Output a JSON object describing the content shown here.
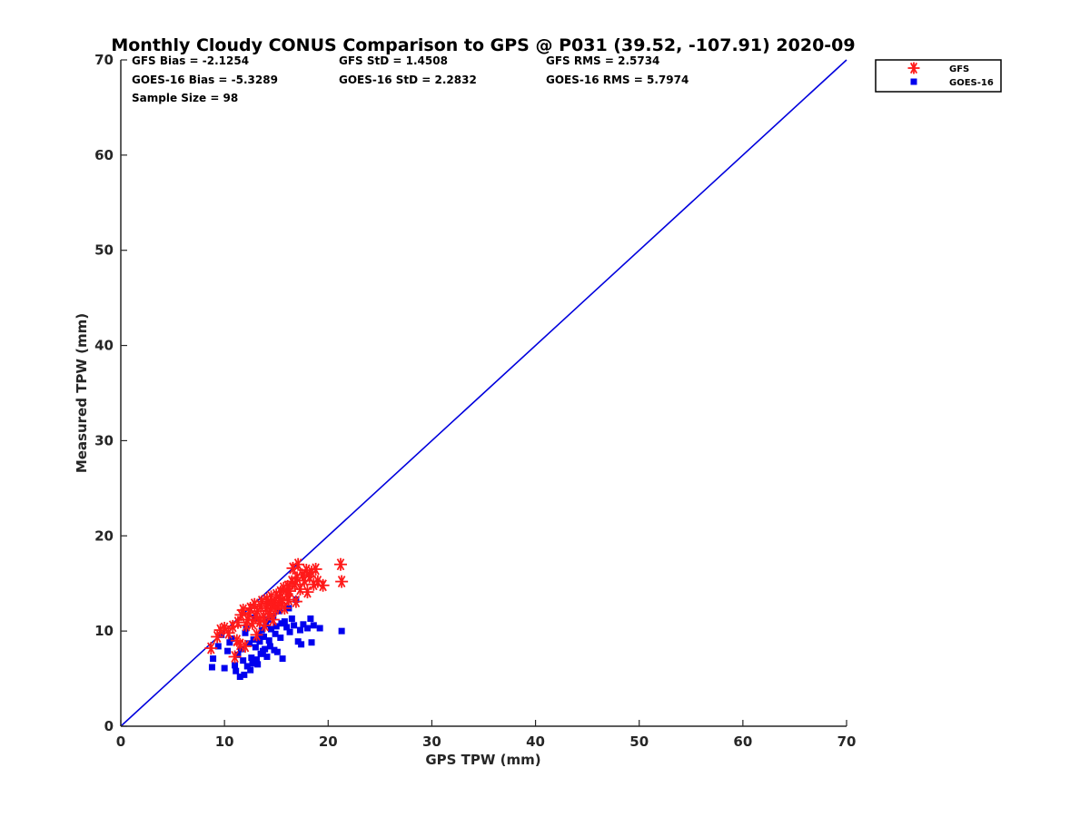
{
  "chart_data": {
    "type": "scatter",
    "title": "Monthly Cloudy CONUS Comparison to GPS @ P031 (39.52, -107.91) 2020-09",
    "xlabel": "GPS TPW (mm)",
    "ylabel": "Measured TPW (mm)",
    "xlim": [
      0,
      70
    ],
    "ylim": [
      0,
      70
    ],
    "xticks": [
      "0",
      "10",
      "20",
      "30",
      "40",
      "50",
      "60",
      "70"
    ],
    "yticks": [
      "0",
      "10",
      "20",
      "30",
      "40",
      "50",
      "60",
      "70"
    ],
    "grid": false,
    "legend_position": "top-right-outside",
    "stats": {
      "gfs_bias": "GFS Bias = -2.1254",
      "goes_bias": "GOES-16 Bias = -5.3289",
      "sample_size": "Sample Size = 98",
      "gfs_std": "GFS StD = 1.4508",
      "goes_std": "GOES-16 StD = 2.2832",
      "gfs_rms": "GFS RMS = 2.5734",
      "goes_rms": "GOES-16 RMS = 5.7974"
    },
    "reference_line": {
      "from": [
        0,
        0
      ],
      "to": [
        70,
        70
      ],
      "color": "#0000dd"
    },
    "series": [
      {
        "name": "GFS",
        "marker": "asterisk",
        "color": "#ff1a1a",
        "points": [
          [
            8.7,
            8.2
          ],
          [
            9.3,
            9.4
          ],
          [
            9.6,
            10.1
          ],
          [
            10.0,
            10.3
          ],
          [
            10.4,
            9.8
          ],
          [
            10.8,
            10.5
          ],
          [
            11.0,
            7.3
          ],
          [
            11.2,
            9.0
          ],
          [
            11.3,
            10.9
          ],
          [
            11.5,
            8.6
          ],
          [
            11.6,
            11.7
          ],
          [
            11.8,
            12.2
          ],
          [
            12.0,
            8.4
          ],
          [
            12.1,
            10.6
          ],
          [
            12.2,
            11.2
          ],
          [
            12.4,
            11.9
          ],
          [
            12.5,
            12.4
          ],
          [
            12.7,
            10.8
          ],
          [
            12.9,
            12.8
          ],
          [
            13.0,
            11.5
          ],
          [
            13.1,
            9.6
          ],
          [
            13.2,
            12.1
          ],
          [
            13.4,
            11.0
          ],
          [
            13.5,
            12.6
          ],
          [
            13.6,
            13.1
          ],
          [
            13.8,
            11.4
          ],
          [
            13.9,
            10.6
          ],
          [
            14.0,
            12.4
          ],
          [
            14.1,
            13.3
          ],
          [
            14.2,
            12.9
          ],
          [
            14.3,
            11.8
          ],
          [
            14.4,
            12.1
          ],
          [
            14.5,
            13.6
          ],
          [
            14.6,
            12.7
          ],
          [
            14.7,
            11.2
          ],
          [
            14.8,
            13.0
          ],
          [
            14.9,
            12.3
          ],
          [
            15.0,
            13.8
          ],
          [
            15.2,
            12.6
          ],
          [
            15.3,
            13.4
          ],
          [
            15.4,
            14.1
          ],
          [
            15.5,
            12.9
          ],
          [
            15.6,
            13.2
          ],
          [
            15.7,
            14.5
          ],
          [
            15.8,
            12.4
          ],
          [
            16.0,
            13.9
          ],
          [
            16.1,
            14.7
          ],
          [
            16.2,
            13.3
          ],
          [
            16.3,
            14.2
          ],
          [
            16.5,
            15.2
          ],
          [
            16.6,
            16.6
          ],
          [
            16.8,
            14.9
          ],
          [
            16.9,
            13.1
          ],
          [
            17.0,
            15.6
          ],
          [
            17.1,
            17.0
          ],
          [
            17.3,
            14.4
          ],
          [
            17.5,
            15.9
          ],
          [
            17.7,
            15.3
          ],
          [
            17.9,
            16.4
          ],
          [
            18.0,
            14.1
          ],
          [
            18.2,
            15.7
          ],
          [
            18.4,
            16.2
          ],
          [
            18.6,
            14.9
          ],
          [
            18.8,
            16.5
          ],
          [
            19.0,
            15.2
          ],
          [
            19.5,
            14.8
          ],
          [
            21.2,
            17.0
          ],
          [
            21.3,
            15.2
          ]
        ]
      },
      {
        "name": "GOES-16",
        "marker": "square",
        "color": "#0000ee",
        "points": [
          [
            8.8,
            6.2
          ],
          [
            8.9,
            7.1
          ],
          [
            9.4,
            8.4
          ],
          [
            9.7,
            9.6
          ],
          [
            10.0,
            6.1
          ],
          [
            10.3,
            7.9
          ],
          [
            10.5,
            8.8
          ],
          [
            10.7,
            9.2
          ],
          [
            11.0,
            6.4
          ],
          [
            11.1,
            5.8
          ],
          [
            11.3,
            7.5
          ],
          [
            11.5,
            5.2
          ],
          [
            11.6,
            8.1
          ],
          [
            11.8,
            6.9
          ],
          [
            11.9,
            5.4
          ],
          [
            12.0,
            9.8
          ],
          [
            12.1,
            10.3
          ],
          [
            12.2,
            6.3
          ],
          [
            12.4,
            8.7
          ],
          [
            12.5,
            5.9
          ],
          [
            12.6,
            7.2
          ],
          [
            12.7,
            6.6
          ],
          [
            12.8,
            9.1
          ],
          [
            12.9,
            11.4
          ],
          [
            13.0,
            8.3
          ],
          [
            13.1,
            7.0
          ],
          [
            13.2,
            6.5
          ],
          [
            13.3,
            9.5
          ],
          [
            13.4,
            8.9
          ],
          [
            13.5,
            7.6
          ],
          [
            13.6,
            10.1
          ],
          [
            13.7,
            7.9
          ],
          [
            13.8,
            9.4
          ],
          [
            13.9,
            8.1
          ],
          [
            14.0,
            10.7
          ],
          [
            14.1,
            7.3
          ],
          [
            14.2,
            11.2
          ],
          [
            14.3,
            9.0
          ],
          [
            14.4,
            8.4
          ],
          [
            14.5,
            10.2
          ],
          [
            14.7,
            11.6
          ],
          [
            14.8,
            8.0
          ],
          [
            14.9,
            9.7
          ],
          [
            15.0,
            10.5
          ],
          [
            15.1,
            7.8
          ],
          [
            15.3,
            12.1
          ],
          [
            15.4,
            9.3
          ],
          [
            15.5,
            10.8
          ],
          [
            15.6,
            7.1
          ],
          [
            15.8,
            11.0
          ],
          [
            16.0,
            10.4
          ],
          [
            16.2,
            12.4
          ],
          [
            16.3,
            9.9
          ],
          [
            16.5,
            11.3
          ],
          [
            16.7,
            10.6
          ],
          [
            16.9,
            13.3
          ],
          [
            17.1,
            8.9
          ],
          [
            17.3,
            10.1
          ],
          [
            17.4,
            8.6
          ],
          [
            17.6,
            10.7
          ],
          [
            18.0,
            10.3
          ],
          [
            18.3,
            11.3
          ],
          [
            18.4,
            8.8
          ],
          [
            18.6,
            10.6
          ],
          [
            19.2,
            10.3
          ],
          [
            21.3,
            10.0
          ]
        ]
      }
    ]
  }
}
